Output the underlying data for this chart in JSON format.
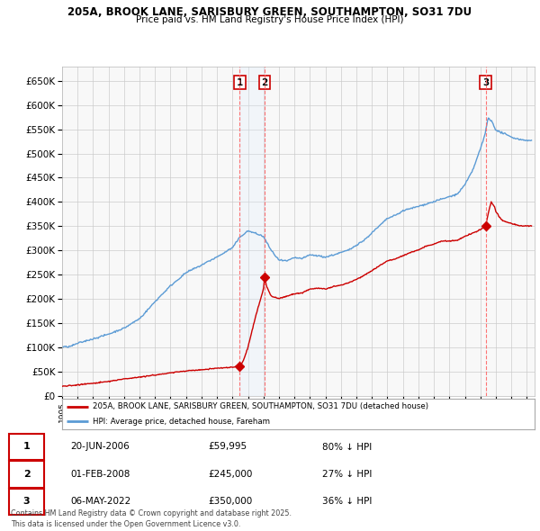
{
  "title1": "205A, BROOK LANE, SARISBURY GREEN, SOUTHAMPTON, SO31 7DU",
  "title2": "Price paid vs. HM Land Registry's House Price Index (HPI)",
  "bg_color": "#ffffff",
  "grid_color": "#cccccc",
  "plot_bg": "#f8f8f8",
  "hpi_color": "#5b9bd5",
  "price_color": "#cc0000",
  "shade_color": "#ddeeff",
  "transactions": [
    {
      "num": 1,
      "date_label": "20-JUN-2006",
      "date_x": 2006.47,
      "price": 59995,
      "pct": "80% ↓ HPI"
    },
    {
      "num": 2,
      "date_label": "01-FEB-2008",
      "date_x": 2008.08,
      "price": 245000,
      "pct": "27% ↓ HPI"
    },
    {
      "num": 3,
      "date_label": "06-MAY-2022",
      "date_x": 2022.34,
      "price": 350000,
      "pct": "36% ↓ HPI"
    }
  ],
  "legend_property": "205A, BROOK LANE, SARISBURY GREEN, SOUTHAMPTON, SO31 7DU (detached house)",
  "legend_hpi": "HPI: Average price, detached house, Fareham",
  "footnote": "Contains HM Land Registry data © Crown copyright and database right 2025.\nThis data is licensed under the Open Government Licence v3.0.",
  "xmin": 1995,
  "xmax": 2025.5,
  "ymin": 0,
  "ymax": 680000
}
